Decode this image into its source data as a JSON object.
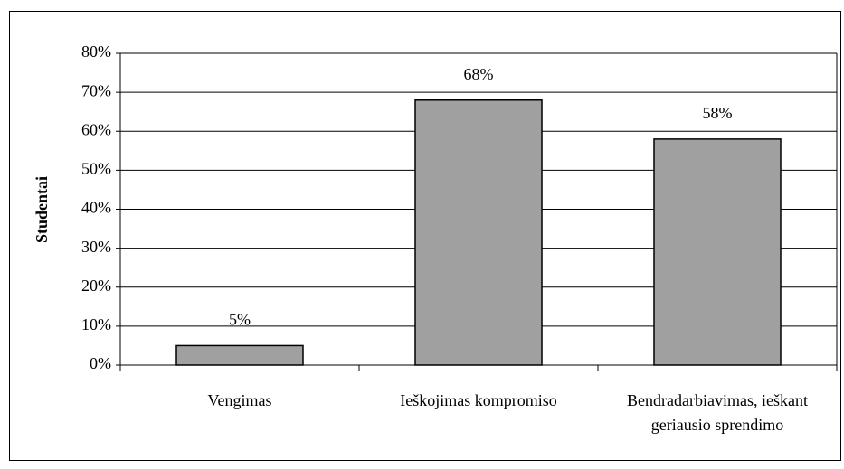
{
  "chart_data": {
    "type": "bar",
    "y_label": "Studentai",
    "categories": [
      "Vengimas",
      "Ieškojimas kompromiso",
      "Bendradarbiavimas, ieškant geriausio sprendimo"
    ],
    "values": [
      5,
      68,
      58
    ],
    "value_labels": [
      "5%",
      "68%",
      "58%"
    ],
    "color": "#a0a0a0",
    "ylim": [
      0,
      80
    ],
    "yticks": [
      {
        "value": 0,
        "label": "0%"
      },
      {
        "value": 10,
        "label": "10%"
      },
      {
        "value": 20,
        "label": "20%"
      },
      {
        "value": 30,
        "label": "30%"
      },
      {
        "value": 40,
        "label": "40%"
      },
      {
        "value": 50,
        "label": "50%"
      },
      {
        "value": 60,
        "label": "60%"
      },
      {
        "value": 70,
        "label": "70%"
      },
      {
        "value": 80,
        "label": "80%"
      }
    ],
    "grid": true
  }
}
